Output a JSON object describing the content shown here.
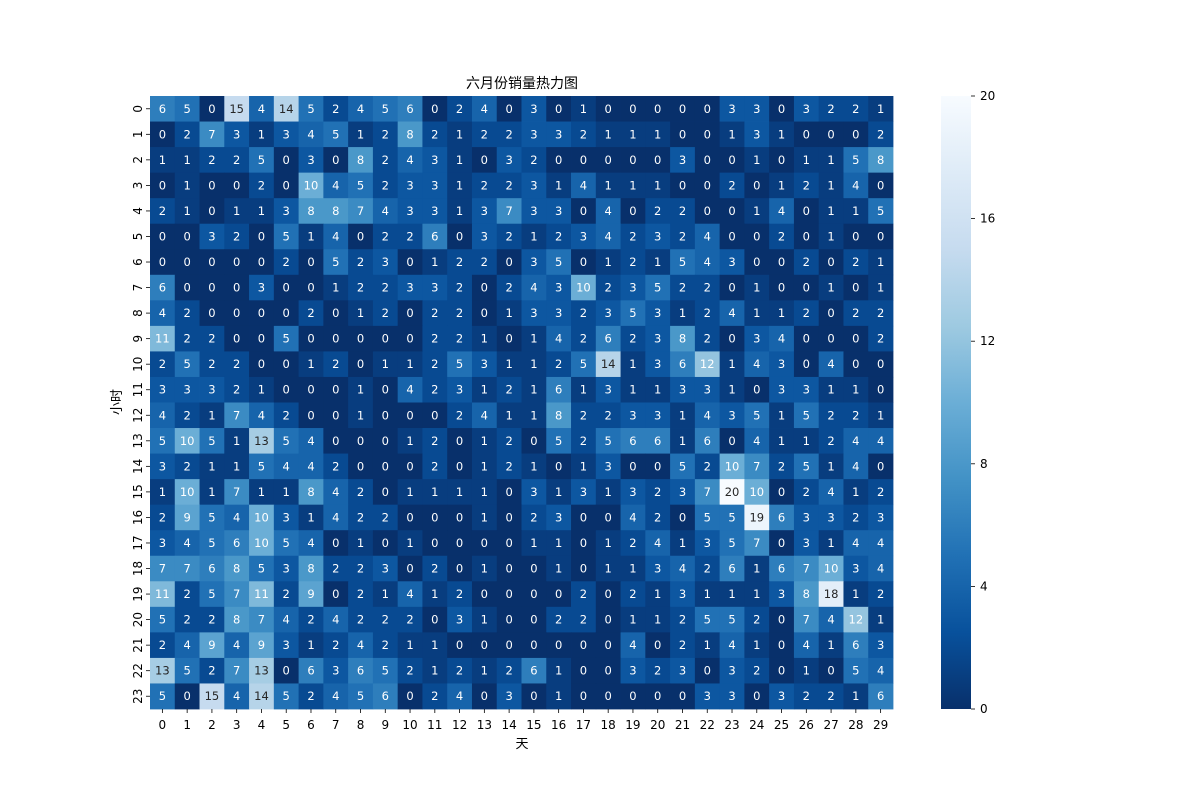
{
  "chart_data": {
    "type": "heatmap",
    "title": "六月份销量热力图",
    "xlabel": "天",
    "ylabel": "小时",
    "x_categories": [
      "0",
      "1",
      "2",
      "3",
      "4",
      "5",
      "6",
      "7",
      "8",
      "9",
      "10",
      "11",
      "12",
      "13",
      "14",
      "15",
      "16",
      "17",
      "18",
      "19",
      "20",
      "21",
      "22",
      "23",
      "24",
      "25",
      "26",
      "27",
      "28",
      "29"
    ],
    "y_categories": [
      "0",
      "1",
      "2",
      "3",
      "4",
      "5",
      "6",
      "7",
      "8",
      "9",
      "10",
      "11",
      "12",
      "13",
      "14",
      "15",
      "16",
      "17",
      "18",
      "19",
      "20",
      "21",
      "22",
      "23"
    ],
    "values": [
      [
        6,
        5,
        0,
        15,
        4,
        14,
        5,
        2,
        4,
        5,
        6,
        0,
        2,
        4,
        0,
        3,
        0,
        1,
        0,
        0,
        0,
        0,
        0,
        3,
        3,
        0,
        3,
        2,
        2,
        1
      ],
      [
        0,
        2,
        7,
        3,
        1,
        3,
        4,
        5,
        1,
        2,
        8,
        2,
        1,
        2,
        2,
        3,
        3,
        2,
        1,
        1,
        1,
        0,
        0,
        1,
        3,
        1,
        0,
        0,
        0,
        2
      ],
      [
        1,
        1,
        2,
        2,
        5,
        0,
        3,
        0,
        8,
        2,
        4,
        3,
        1,
        0,
        3,
        2,
        0,
        0,
        0,
        0,
        0,
        3,
        0,
        0,
        1,
        0,
        1,
        1,
        5,
        8
      ],
      [
        0,
        1,
        0,
        0,
        2,
        0,
        10,
        4,
        5,
        2,
        3,
        3,
        1,
        2,
        2,
        3,
        1,
        4,
        1,
        1,
        1,
        0,
        0,
        2,
        0,
        1,
        2,
        1,
        4,
        0
      ],
      [
        2,
        1,
        0,
        1,
        1,
        3,
        8,
        8,
        7,
        4,
        3,
        3,
        1,
        3,
        7,
        3,
        3,
        0,
        4,
        0,
        2,
        2,
        0,
        0,
        1,
        4,
        0,
        1,
        1,
        5
      ],
      [
        0,
        0,
        3,
        2,
        0,
        5,
        1,
        4,
        0,
        2,
        2,
        6,
        0,
        3,
        2,
        1,
        2,
        3,
        4,
        2,
        3,
        2,
        4,
        0,
        0,
        2,
        0,
        1,
        0,
        0
      ],
      [
        0,
        0,
        0,
        0,
        0,
        2,
        0,
        5,
        2,
        3,
        0,
        1,
        2,
        2,
        0,
        3,
        5,
        0,
        1,
        2,
        1,
        5,
        4,
        3,
        0,
        0,
        2,
        0,
        2,
        1
      ],
      [
        6,
        0,
        0,
        0,
        3,
        0,
        0,
        1,
        2,
        2,
        3,
        3,
        2,
        0,
        2,
        4,
        3,
        10,
        2,
        3,
        5,
        2,
        2,
        0,
        1,
        0,
        0,
        1,
        0,
        1
      ],
      [
        4,
        2,
        0,
        0,
        0,
        0,
        2,
        0,
        1,
        2,
        0,
        2,
        2,
        0,
        1,
        3,
        3,
        2,
        3,
        5,
        3,
        1,
        2,
        4,
        1,
        1,
        2,
        0,
        2,
        2
      ],
      [
        11,
        2,
        2,
        0,
        0,
        5,
        0,
        0,
        0,
        0,
        0,
        2,
        2,
        1,
        0,
        1,
        4,
        2,
        6,
        2,
        3,
        8,
        2,
        0,
        3,
        4,
        0,
        0,
        0,
        2
      ],
      [
        2,
        5,
        2,
        2,
        0,
        0,
        1,
        2,
        0,
        1,
        1,
        2,
        5,
        3,
        1,
        1,
        2,
        5,
        14,
        1,
        3,
        6,
        12,
        1,
        4,
        3,
        0,
        4,
        0,
        0
      ],
      [
        3,
        3,
        3,
        2,
        1,
        0,
        0,
        0,
        1,
        0,
        4,
        2,
        3,
        1,
        2,
        1,
        6,
        1,
        3,
        1,
        1,
        3,
        3,
        1,
        0,
        3,
        3,
        1,
        1,
        0
      ],
      [
        4,
        2,
        1,
        7,
        4,
        2,
        0,
        0,
        1,
        0,
        0,
        0,
        2,
        4,
        1,
        1,
        8,
        2,
        2,
        3,
        3,
        1,
        4,
        3,
        5,
        1,
        5,
        2,
        2,
        1
      ],
      [
        5,
        10,
        5,
        1,
        13,
        5,
        4,
        0,
        0,
        0,
        1,
        2,
        0,
        1,
        2,
        0,
        5,
        2,
        5,
        6,
        6,
        1,
        6,
        0,
        4,
        1,
        1,
        2,
        4,
        4
      ],
      [
        3,
        2,
        1,
        1,
        5,
        4,
        4,
        2,
        0,
        0,
        0,
        2,
        0,
        1,
        2,
        1,
        0,
        1,
        3,
        0,
        0,
        5,
        2,
        10,
        7,
        2,
        5,
        1,
        4,
        0
      ],
      [
        1,
        10,
        1,
        7,
        1,
        1,
        8,
        4,
        2,
        0,
        1,
        1,
        1,
        1,
        0,
        3,
        1,
        3,
        1,
        3,
        2,
        3,
        7,
        20,
        10,
        0,
        2,
        4,
        1,
        2
      ],
      [
        2,
        9,
        5,
        4,
        10,
        3,
        1,
        4,
        2,
        2,
        0,
        0,
        0,
        1,
        0,
        2,
        3,
        0,
        0,
        4,
        2,
        0,
        5,
        5,
        19,
        6,
        3,
        3,
        2,
        3
      ],
      [
        3,
        4,
        5,
        6,
        10,
        5,
        4,
        0,
        1,
        0,
        1,
        0,
        0,
        0,
        0,
        1,
        1,
        0,
        1,
        2,
        4,
        1,
        3,
        5,
        7,
        0,
        3,
        1,
        4,
        4
      ],
      [
        7,
        7,
        6,
        8,
        5,
        3,
        8,
        2,
        2,
        3,
        0,
        2,
        0,
        1,
        0,
        0,
        1,
        0,
        1,
        1,
        3,
        4,
        2,
        6,
        1,
        6,
        7,
        10,
        3,
        4
      ],
      [
        11,
        2,
        5,
        7,
        11,
        2,
        9,
        0,
        2,
        1,
        4,
        1,
        2,
        0,
        0,
        0,
        0,
        2,
        0,
        2,
        1,
        3,
        1,
        1,
        1,
        3,
        8,
        18,
        1,
        2
      ],
      [
        5,
        2,
        2,
        8,
        7,
        4,
        2,
        4,
        2,
        2,
        2,
        0,
        3,
        1,
        0,
        0,
        2,
        2,
        0,
        1,
        1,
        2,
        5,
        5,
        2,
        0,
        7,
        4,
        12,
        1
      ],
      [
        2,
        4,
        9,
        4,
        9,
        3,
        1,
        2,
        4,
        2,
        1,
        1,
        0,
        0,
        0,
        0,
        0,
        0,
        0,
        4,
        0,
        2,
        1,
        4,
        1,
        0,
        4,
        1,
        6,
        3
      ],
      [
        13,
        5,
        2,
        7,
        13,
        0,
        6,
        3,
        6,
        5,
        2,
        1,
        2,
        1,
        2,
        6,
        1,
        0,
        0,
        3,
        2,
        3,
        0,
        3,
        2,
        0,
        1,
        0,
        5,
        4
      ],
      [
        5,
        0,
        15,
        4,
        14,
        5,
        2,
        4,
        5,
        6,
        0,
        2,
        4,
        0,
        3,
        0,
        1,
        0,
        0,
        0,
        0,
        0,
        3,
        3,
        0,
        3,
        2,
        2,
        1,
        6
      ]
    ],
    "vmin": 0,
    "vmax": 20,
    "colormap": "Blues_r",
    "colorbar_ticks": [
      0,
      4,
      8,
      12,
      16,
      20
    ],
    "colorbar_position": "right"
  }
}
